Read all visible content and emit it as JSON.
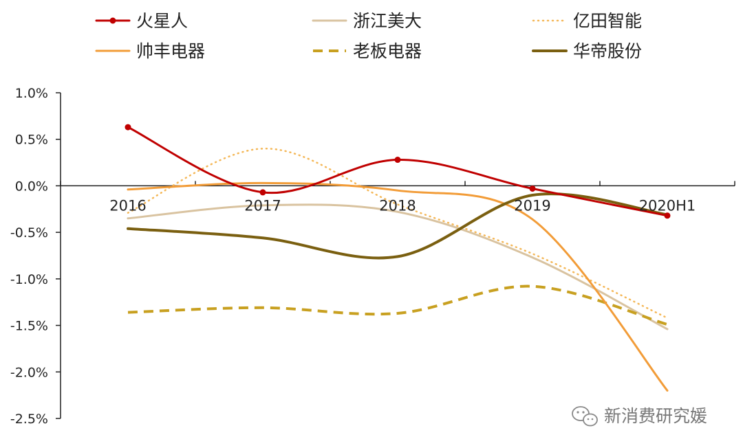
{
  "chart_data": {
    "type": "line",
    "categories": [
      "2016",
      "2017",
      "2018",
      "2019",
      "2020H1"
    ],
    "ylim": [
      -2.5,
      1.0
    ],
    "y_ticks": [
      1.0,
      0.5,
      0.0,
      -0.5,
      -1.0,
      -1.5,
      -2.0,
      -2.5
    ],
    "y_tick_labels": [
      "1.0%",
      "0.5%",
      "0.0%",
      "-0.5%",
      "-1.0%",
      "-1.5%",
      "-2.0%",
      "-2.5%"
    ],
    "grid": false,
    "legend_position": "top",
    "series": [
      {
        "name": "火星人",
        "values": [
          0.63,
          -0.07,
          0.28,
          -0.03,
          -0.32
        ],
        "color": "#C00000",
        "style": "solid-markers"
      },
      {
        "name": "浙江美大",
        "values": [
          -0.35,
          -0.21,
          -0.28,
          -0.77,
          -1.54
        ],
        "color": "#D9C3A0",
        "style": "solid"
      },
      {
        "name": "亿田智能",
        "values": [
          -0.29,
          0.4,
          -0.2,
          -0.73,
          -1.42
        ],
        "color": "#F4B757",
        "style": "dotted"
      },
      {
        "name": "帅丰电器",
        "values": [
          -0.04,
          0.03,
          -0.05,
          -0.36,
          -2.2
        ],
        "color": "#F29C38",
        "style": "solid"
      },
      {
        "name": "老板电器",
        "values": [
          -1.36,
          -1.31,
          -1.37,
          -1.08,
          -1.49
        ],
        "color": "#C8A020",
        "style": "dashed"
      },
      {
        "name": "华帝股份",
        "values": [
          -0.46,
          -0.56,
          -0.76,
          -0.1,
          -0.31
        ],
        "color": "#7A5F10",
        "style": "solid-thick"
      }
    ]
  },
  "watermark": {
    "text": "新消费研究媛",
    "icon": "wechat-icon"
  }
}
